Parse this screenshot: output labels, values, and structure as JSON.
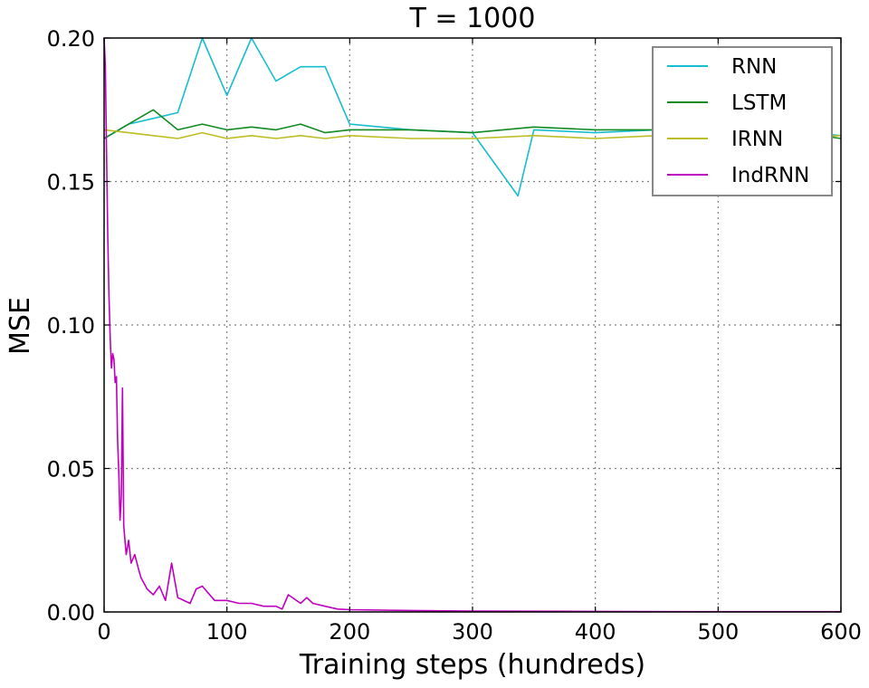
{
  "chart_data": {
    "type": "line",
    "title": "T = 1000",
    "xlabel": "Training steps (hundreds)",
    "ylabel": "MSE",
    "xlim": [
      0,
      600
    ],
    "ylim": [
      0,
      0.2
    ],
    "x_ticks": [
      "0",
      "100",
      "200",
      "300",
      "400",
      "500",
      "600"
    ],
    "y_ticks": [
      "0.00",
      "0.05",
      "0.10",
      "0.15",
      "0.20"
    ],
    "grid": true,
    "legend_position": "top-right",
    "series": [
      {
        "name": "RNN",
        "color": "#17becf",
        "x": [
          0,
          20,
          40,
          60,
          80,
          100,
          120,
          140,
          160,
          180,
          200,
          250,
          300,
          337,
          350,
          400,
          450,
          500,
          550,
          600
        ],
        "values": [
          0.165,
          0.17,
          0.172,
          0.174,
          0.2,
          0.18,
          0.2,
          0.185,
          0.19,
          0.19,
          0.17,
          0.168,
          0.167,
          0.145,
          0.168,
          0.167,
          0.168,
          0.168,
          0.168,
          0.166
        ]
      },
      {
        "name": "LSTM",
        "color": "#118a22",
        "x": [
          0,
          20,
          40,
          60,
          80,
          100,
          120,
          140,
          160,
          180,
          200,
          250,
          300,
          350,
          400,
          450,
          500,
          550,
          600
        ],
        "values": [
          0.165,
          0.17,
          0.175,
          0.168,
          0.17,
          0.168,
          0.169,
          0.168,
          0.17,
          0.167,
          0.168,
          0.168,
          0.167,
          0.169,
          0.168,
          0.168,
          0.168,
          0.168,
          0.165
        ]
      },
      {
        "name": "IRNN",
        "color": "#bcbd22",
        "x": [
          0,
          20,
          40,
          60,
          80,
          100,
          120,
          140,
          160,
          180,
          200,
          250,
          300,
          350,
          400,
          450,
          500,
          550,
          600
        ],
        "values": [
          0.168,
          0.167,
          0.166,
          0.165,
          0.167,
          0.165,
          0.166,
          0.165,
          0.166,
          0.165,
          0.166,
          0.165,
          0.165,
          0.166,
          0.165,
          0.166,
          0.165,
          0.165,
          0.166
        ]
      },
      {
        "name": "IndRNN",
        "color": "#bf00bf",
        "x": [
          0,
          1,
          2,
          3,
          4,
          5,
          6,
          7,
          8,
          9,
          10,
          11,
          12,
          13,
          14,
          15,
          16,
          18,
          20,
          22,
          25,
          28,
          30,
          35,
          40,
          45,
          50,
          55,
          60,
          70,
          75,
          80,
          90,
          100,
          110,
          120,
          130,
          140,
          145,
          150,
          160,
          165,
          170,
          180,
          190,
          200,
          250,
          300,
          400,
          500,
          600
        ],
        "values": [
          0.2,
          0.19,
          0.16,
          0.13,
          0.11,
          0.095,
          0.085,
          0.09,
          0.088,
          0.08,
          0.082,
          0.06,
          0.048,
          0.032,
          0.04,
          0.078,
          0.03,
          0.02,
          0.025,
          0.017,
          0.02,
          0.015,
          0.012,
          0.008,
          0.006,
          0.009,
          0.004,
          0.017,
          0.005,
          0.003,
          0.008,
          0.009,
          0.004,
          0.004,
          0.003,
          0.003,
          0.002,
          0.002,
          0.001,
          0.006,
          0.003,
          0.005,
          0.003,
          0.002,
          0.001,
          0.0008,
          0.0005,
          0.0003,
          0.0002,
          0.0001,
          0.0001
        ]
      }
    ]
  }
}
